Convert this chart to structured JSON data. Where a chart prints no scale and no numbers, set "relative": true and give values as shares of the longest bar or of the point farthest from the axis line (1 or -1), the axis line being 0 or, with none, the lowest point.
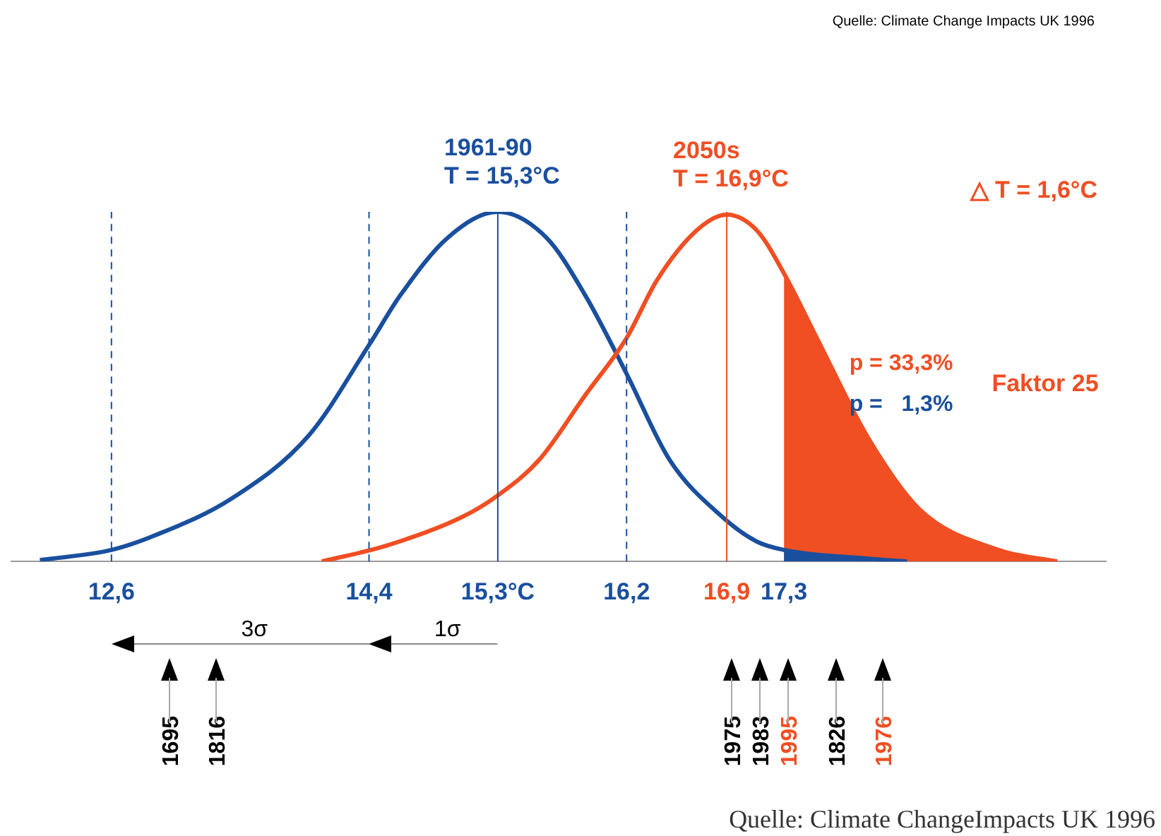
{
  "chart_data": {
    "type": "line",
    "relative": true,
    "xlim": [
      11.9,
      19.55
    ],
    "xticks": [
      {
        "value": 12.6,
        "label": "12,6"
      },
      {
        "value": 14.4,
        "label": "14,4"
      },
      {
        "value": 15.3,
        "label": "15,3°C"
      },
      {
        "value": 16.2,
        "label": "16,2"
      },
      {
        "value": 16.9,
        "label": "16,9"
      },
      {
        "value": 17.3,
        "label": "17,3"
      }
    ],
    "grid": false,
    "legend": false,
    "series": [
      {
        "type": "area",
        "color": "#f04e23",
        "x": [
          17.3,
          17.53,
          17.89,
          18.25,
          18.8,
          19.21
        ],
        "values": [
          0.824,
          0.639,
          0.352,
          0.148,
          0.033,
          0
        ]
      },
      {
        "type": "area",
        "color": "#1a4f9e",
        "x": [
          17.3,
          17.89,
          18.16
        ],
        "values": [
          0.033,
          0.008,
          0
        ]
      },
      {
        "name": "1961-90\nT = 15,3°C",
        "color": "#1a4f9e",
        "x": [
          12.1,
          12.6,
          12.9,
          13.44,
          13.98,
          14.4,
          14.62,
          14.95,
          15.3,
          15.64,
          15.91,
          16.2,
          16.5,
          16.87,
          17.11,
          17.3,
          17.89,
          18.16
        ],
        "values": [
          0.004,
          0.033,
          0.074,
          0.18,
          0.361,
          0.619,
          0.762,
          0.926,
          1,
          0.926,
          0.762,
          0.537,
          0.291,
          0.127,
          0.057,
          0.033,
          0.008,
          0
        ]
      },
      {
        "name": "2050s\nT = 16,9°C",
        "color": "#f04e23",
        "x": [
          14.07,
          14.52,
          15.05,
          15.3,
          15.59,
          15.91,
          16.2,
          16.41,
          16.69,
          16.9,
          17.11,
          17.3,
          17.53,
          17.89,
          18.25,
          18.8,
          19.21
        ],
        "values": [
          0,
          0.045,
          0.127,
          0.189,
          0.291,
          0.475,
          0.639,
          0.803,
          0.947,
          0.992,
          0.947,
          0.824,
          0.639,
          0.352,
          0.148,
          0.033,
          0
        ]
      }
    ],
    "ref_lines": [
      {
        "axis": "x",
        "value": 12.6,
        "color": "#1a4f9e",
        "line_style": "dashed"
      },
      {
        "axis": "x",
        "value": 14.4,
        "color": "#1a4f9e",
        "line_style": "dashed"
      },
      {
        "axis": "x",
        "value": 15.3,
        "color": "#1a4f9e",
        "line_style": "solid"
      },
      {
        "axis": "x",
        "value": 16.2,
        "color": "#1a4f9e",
        "line_style": "dashed"
      },
      {
        "axis": "x",
        "value": 16.9,
        "color": "#f04e23",
        "line_style": "solid"
      }
    ],
    "annotations": [
      "Quelle: Climate Change Impacts UK 1996",
      "△ T = 1,6°C",
      "p = 33,3%",
      "p =   1,3%",
      "Faktor 25",
      "3σ",
      "1σ",
      "1695",
      "1816",
      "1975",
      "1983",
      "1995",
      "1826",
      "1976",
      "Quelle: Climate ChangeImpacts UK 1996"
    ]
  }
}
